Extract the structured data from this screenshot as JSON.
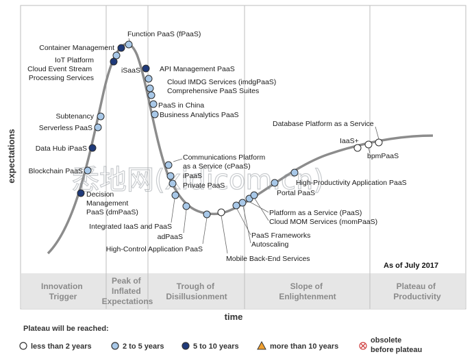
{
  "axes": {
    "y_label": "expectations",
    "x_label": "time"
  },
  "as_of": "As of July 2017",
  "watermark": "悉地网(xidicom.cn)",
  "phases": [
    {
      "id": "innovation",
      "lines": [
        "Innovation",
        "Trigger"
      ]
    },
    {
      "id": "peak",
      "lines": [
        "Peak of",
        "Inflated",
        "Expectations"
      ]
    },
    {
      "id": "trough",
      "lines": [
        "Trough of",
        "Disillusionment"
      ]
    },
    {
      "id": "slope",
      "lines": [
        "Slope of",
        "Enlightenment"
      ]
    },
    {
      "id": "plateau",
      "lines": [
        "Plateau of",
        "Productivity"
      ]
    }
  ],
  "legend": {
    "title": "Plateau will be reached:",
    "items": [
      {
        "id": "lt2",
        "label": "less than 2 years",
        "color": "#ffffff"
      },
      {
        "id": "2to5",
        "label": "2 to 5 years",
        "color": "#a8c8e8"
      },
      {
        "id": "5to10",
        "label": "5 to 10 years",
        "color": "#1f3a7a"
      },
      {
        "id": "gt10",
        "label": "more than 10 years",
        "color": "#f0a030"
      },
      {
        "id": "obsolete",
        "lines": [
          "obsolete",
          "before plateau"
        ],
        "color": "#d04040"
      }
    ]
  },
  "technologies": [
    {
      "name": "Function PaaS (fPaaS)",
      "category": "2to5"
    },
    {
      "name": "Container Management",
      "category": "5to10"
    },
    {
      "name": "IoT Platform",
      "category": "2to5"
    },
    {
      "name": "Cloud Event Stream Processing Services",
      "lines": [
        "Cloud Event Stream",
        "Processing Services"
      ],
      "category": "5to10"
    },
    {
      "name": "iSaaS",
      "category": "5to10"
    },
    {
      "name": "API Management PaaS",
      "category": "2to5"
    },
    {
      "name": "Cloud IMDG Services (imdgPaaS)",
      "category": "2to5"
    },
    {
      "name": "Comprehensive PaaS Suites",
      "category": "2to5"
    },
    {
      "name": "PaaS in China",
      "category": "2to5"
    },
    {
      "name": "Business Analytics PaaS",
      "category": "2to5"
    },
    {
      "name": "Subtenancy",
      "category": "2to5"
    },
    {
      "name": "Serverless PaaS",
      "category": "2to5"
    },
    {
      "name": "Data Hub iPaaS",
      "category": "5to10"
    },
    {
      "name": "Blockchain PaaS",
      "category": "2to5"
    },
    {
      "name": "Decision Management PaaS (dmPaaS)",
      "lines": [
        "Decision",
        "Management",
        "PaaS (dmPaaS)"
      ],
      "category": "5to10"
    },
    {
      "name": "Communications Platform as a Service (cPaaS)",
      "lines": [
        "Communications Platform",
        "as a Service (cPaaS)"
      ],
      "category": "2to5"
    },
    {
      "name": "iPaaS",
      "category": "2to5"
    },
    {
      "name": "Private PaaS",
      "category": "2to5"
    },
    {
      "name": "Integrated IaaS and PaaS",
      "category": "2to5"
    },
    {
      "name": "adPaaS",
      "category": "2to5"
    },
    {
      "name": "High-Control Application PaaS",
      "category": "2to5"
    },
    {
      "name": "Mobile Back-End Services",
      "category": "lt2"
    },
    {
      "name": "PaaS Frameworks",
      "category": "2to5"
    },
    {
      "name": "Autoscaling",
      "category": "2to5"
    },
    {
      "name": "Platform as a Service (PaaS)",
      "category": "2to5"
    },
    {
      "name": "Cloud MOM Services (momPaaS)",
      "category": "2to5"
    },
    {
      "name": "Portal PaaS",
      "category": "2to5"
    },
    {
      "name": "High-Productivity Application PaaS",
      "category": "2to5"
    },
    {
      "name": "Database Platform as a Service",
      "category": "lt2"
    },
    {
      "name": "IaaS+",
      "category": "lt2"
    },
    {
      "name": "bpmPaaS",
      "category": "lt2"
    }
  ]
}
